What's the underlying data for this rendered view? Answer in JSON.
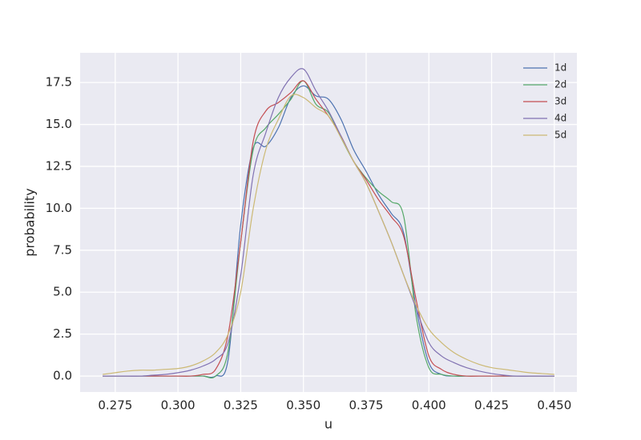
{
  "chart_data": {
    "type": "line",
    "xlabel": "u",
    "ylabel": "probability",
    "x": [
      0.27,
      0.275,
      0.28,
      0.285,
      0.29,
      0.295,
      0.3,
      0.305,
      0.31,
      0.315,
      0.32,
      0.325,
      0.33,
      0.335,
      0.34,
      0.345,
      0.35,
      0.355,
      0.36,
      0.365,
      0.37,
      0.375,
      0.38,
      0.385,
      0.39,
      0.395,
      0.4,
      0.405,
      0.41,
      0.415,
      0.42,
      0.425,
      0.43,
      0.435,
      0.44,
      0.445,
      0.45
    ],
    "series": [
      {
        "name": "1d",
        "color": "#4c72b0",
        "values": [
          0,
          0,
          0,
          0,
          0,
          0,
          0,
          0,
          0,
          0,
          1,
          9,
          13.6,
          13.7,
          14.8,
          16.6,
          17.3,
          16.7,
          16.5,
          15.3,
          13.5,
          12.2,
          10.8,
          9.7,
          8.5,
          4,
          0.8,
          0.1,
          0,
          0,
          0,
          0,
          0,
          0,
          0,
          0,
          0
        ]
      },
      {
        "name": "2d",
        "color": "#55a868",
        "values": [
          0,
          0,
          0,
          0,
          0,
          0,
          0,
          0,
          0,
          0,
          1.5,
          8,
          13.5,
          14.8,
          15.6,
          16.5,
          17.6,
          16.2,
          15.7,
          14.2,
          12.8,
          11.8,
          11,
          10.4,
          9.5,
          3.5,
          0.5,
          0.1,
          0,
          0,
          0,
          0,
          0,
          0,
          0,
          0,
          0
        ]
      },
      {
        "name": "3d",
        "color": "#c44e52",
        "values": [
          0,
          0,
          0,
          0,
          0,
          0,
          0,
          0,
          0.1,
          0.4,
          2.5,
          8,
          14,
          15.8,
          16.3,
          16.9,
          17.6,
          16.5,
          15.5,
          14.3,
          12.8,
          11.7,
          10.5,
          9.5,
          8.3,
          4.5,
          1.2,
          0.4,
          0.1,
          0,
          0,
          0,
          0,
          0,
          0,
          0,
          0
        ]
      },
      {
        "name": "4d",
        "color": "#8172b2",
        "values": [
          0,
          0,
          0,
          0,
          0.05,
          0.1,
          0.2,
          0.35,
          0.6,
          1,
          2,
          6,
          12,
          14.5,
          16.6,
          17.8,
          18.3,
          17,
          15.8,
          14.3,
          12.8,
          11.5,
          9.8,
          8,
          6,
          4,
          2,
          1.2,
          0.8,
          0.5,
          0.3,
          0.15,
          0.05,
          0,
          0,
          0,
          0
        ]
      },
      {
        "name": "5d",
        "color": "#ccb974",
        "values": [
          0.1,
          0.2,
          0.3,
          0.35,
          0.35,
          0.4,
          0.45,
          0.6,
          0.9,
          1.4,
          2.5,
          5,
          10,
          13.5,
          15.3,
          16.7,
          16.6,
          16,
          15.5,
          14.2,
          12.8,
          11.5,
          9.8,
          8,
          6,
          4.2,
          2.8,
          2,
          1.4,
          1,
          0.7,
          0.5,
          0.4,
          0.3,
          0.2,
          0.15,
          0.1
        ]
      }
    ],
    "xlim": [
      0.261,
      0.459
    ],
    "xticks": [
      0.275,
      {
        "value": 0.3,
        "label": "0.300"
      },
      0.325,
      {
        "value": 0.35,
        "label": "0.350"
      },
      0.375,
      {
        "value": 0.4,
        "label": "0.400"
      },
      0.425,
      {
        "value": 0.45,
        "label": "0.450"
      }
    ],
    "ylim": [
      -0.95,
      19.27
    ],
    "yticks": [
      {
        "value": 0,
        "label": "0.0"
      },
      2.5,
      {
        "value": 5,
        "label": "5.0"
      },
      7.5,
      {
        "value": 10,
        "label": "10.0"
      },
      12.5,
      {
        "value": 15,
        "label": "15.0"
      },
      17.5
    ],
    "grid": true,
    "legend": "upper right"
  }
}
